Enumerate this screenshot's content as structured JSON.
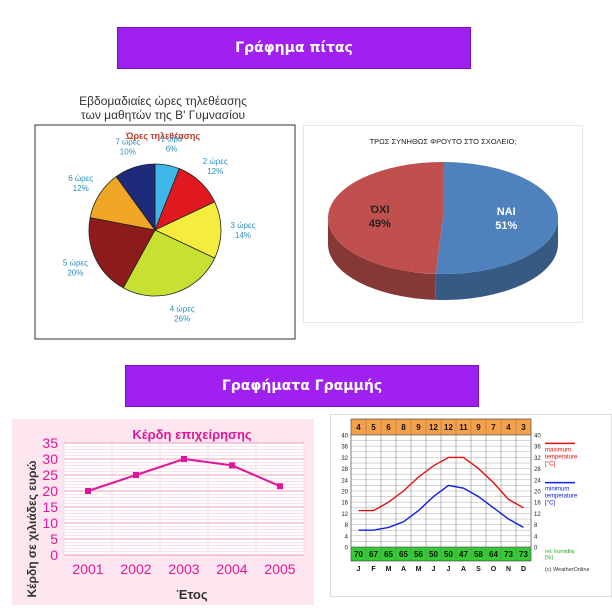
{
  "banners": {
    "pie": "Γράφημα πίτας",
    "line": "Γραφήματα Γραμμής"
  },
  "chart_data": [
    {
      "type": "pie",
      "title": "Εβδομαδιαίες ώρες τηλεθέασης",
      "subtitle": "των μαθητών της Β' Γυμνασίου",
      "legend_title": "Ώρες τηλεθέασης",
      "slices": [
        {
          "label": "1 ώρα",
          "value": 6,
          "color": "#3eb6e8"
        },
        {
          "label": "2 ώρες",
          "value": 12,
          "color": "#e0181f"
        },
        {
          "label": "3 ώρες",
          "value": 14,
          "color": "#f4ed3f"
        },
        {
          "label": "4 ώρες",
          "value": 26,
          "color": "#c8e033"
        },
        {
          "label": "5 ώρες",
          "value": 20,
          "color": "#8e1b1b"
        },
        {
          "label": "6 ώρες",
          "value": 12,
          "color": "#f0a726"
        },
        {
          "label": "7 ώρες",
          "value": 10,
          "color": "#1e2a7a"
        }
      ],
      "slice_text": [
        "1 ώρα 6%",
        "2 ώρες 12%",
        "3 ώρες 14%",
        "4 ώρες 26%",
        "5 ώρες 20%",
        "6 ώρες 12%",
        "7 ώρες 10%"
      ]
    },
    {
      "type": "pie",
      "title": "ΤΡΩΣ ΣΥΝΗΘΩΣ ΦΡΟΥΤΟ ΣΤΟ ΣΧΟΛΕΙΟ;",
      "slices": [
        {
          "label": "ΌΧΙ",
          "value": 49,
          "color": "#c0504d"
        },
        {
          "label": "ΝΑΙ",
          "value": 51,
          "color": "#4f81bd"
        }
      ],
      "slice_text": [
        [
          "ΌΧΙ",
          "49%"
        ],
        [
          "ΝΑΙ",
          "51%"
        ]
      ]
    },
    {
      "type": "line",
      "title": "Κέρδη επιχείρησης",
      "xlabel": "Έτος",
      "ylabel": "Κέρδη σε χιλιάδες ευρώ",
      "categories": [
        "2001",
        "2002",
        "2003",
        "2004",
        "2005"
      ],
      "values": [
        20,
        25,
        30,
        28,
        21.5
      ],
      "ylim": [
        0,
        35
      ],
      "yticks": [
        "0",
        "5",
        "10",
        "15",
        "20",
        "25",
        "30",
        "35"
      ],
      "grid": true,
      "color": "#e0169a"
    },
    {
      "type": "line",
      "categories": [
        "J",
        "F",
        "M",
        "A",
        "M",
        "J",
        "J",
        "A",
        "S",
        "O",
        "N",
        "D"
      ],
      "top_row": [
        "4",
        "5",
        "6",
        "8",
        "9",
        "12",
        "12",
        "11",
        "9",
        "7",
        "4",
        "3"
      ],
      "bottom_row": [
        "70",
        "67",
        "65",
        "65",
        "56",
        "50",
        "50",
        "47",
        "58",
        "64",
        "73",
        "73"
      ],
      "ylim": [
        0,
        40
      ],
      "yticks": [
        "0",
        "4",
        "8",
        "12",
        "16",
        "20",
        "24",
        "28",
        "32",
        "36",
        "40"
      ],
      "series": [
        {
          "name": "maximum temperature [°C]",
          "color": "#e01010",
          "values": [
            13,
            13,
            16,
            20,
            25,
            29,
            32,
            32,
            28,
            23,
            17,
            14
          ]
        },
        {
          "name": "minimum temperature [°C]",
          "color": "#1020e0",
          "values": [
            6,
            6,
            7,
            9,
            13,
            18,
            22,
            21,
            18,
            14,
            10,
            7
          ]
        }
      ],
      "legend_extra": "rel. humidity [%]",
      "credit": "(c) WeatherOnline",
      "grid": true
    }
  ]
}
